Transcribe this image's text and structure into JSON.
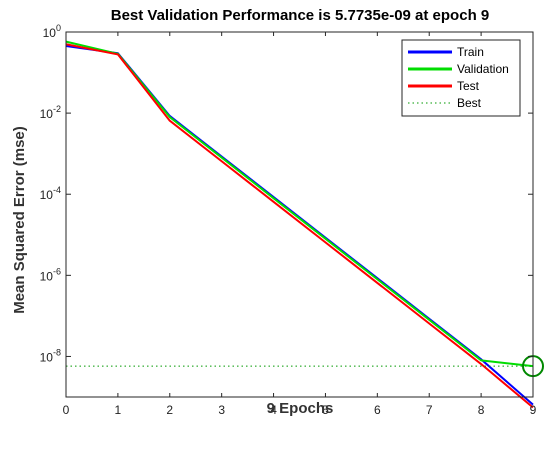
{
  "chart_data": {
    "type": "line",
    "title": "Best Validation Performance is 5.7735e-09 at epoch 9",
    "xlabel": "9 Epochs",
    "ylabel": "Mean Squared Error  (mse)",
    "xlim": [
      0,
      9
    ],
    "ylim": [
      1e-09,
      1
    ],
    "y_scale": "log",
    "x_ticks": [
      0,
      1,
      2,
      3,
      4,
      5,
      6,
      7,
      8,
      9
    ],
    "y_ticks": [
      {
        "value": 1,
        "base": "10",
        "exp": "0"
      },
      {
        "value": 0.01,
        "base": "10",
        "exp": "-2"
      },
      {
        "value": 0.0001,
        "base": "10",
        "exp": "-4"
      },
      {
        "value": 1e-06,
        "base": "10",
        "exp": "-6"
      },
      {
        "value": 1e-08,
        "base": "10",
        "exp": "-8"
      }
    ],
    "grid": false,
    "legend_position": "top-right",
    "x": [
      0,
      1,
      2,
      3,
      4,
      5,
      6,
      7,
      8,
      9
    ],
    "series": [
      {
        "name": "Train",
        "color": "#0000ff",
        "values": [
          0.45,
          0.3,
          0.0085,
          0.00085,
          8.5e-05,
          8.5e-06,
          8.5e-07,
          8.5e-08,
          8.5e-09,
          6.5e-10
        ]
      },
      {
        "name": "Validation",
        "color": "#00dd00",
        "values": [
          0.58,
          0.29,
          0.008,
          0.0008,
          8e-05,
          8e-06,
          8e-07,
          8e-08,
          8e-09,
          5.7735e-09
        ]
      },
      {
        "name": "Test",
        "color": "#ff0000",
        "values": [
          0.5,
          0.28,
          0.0065,
          0.00065,
          6.5e-05,
          6.5e-06,
          6.5e-07,
          6.5e-08,
          6.5e-09,
          5.5e-10
        ]
      }
    ],
    "best": {
      "name": "Best",
      "epoch": 9,
      "value": 5.7735e-09,
      "color": "#009900"
    }
  }
}
